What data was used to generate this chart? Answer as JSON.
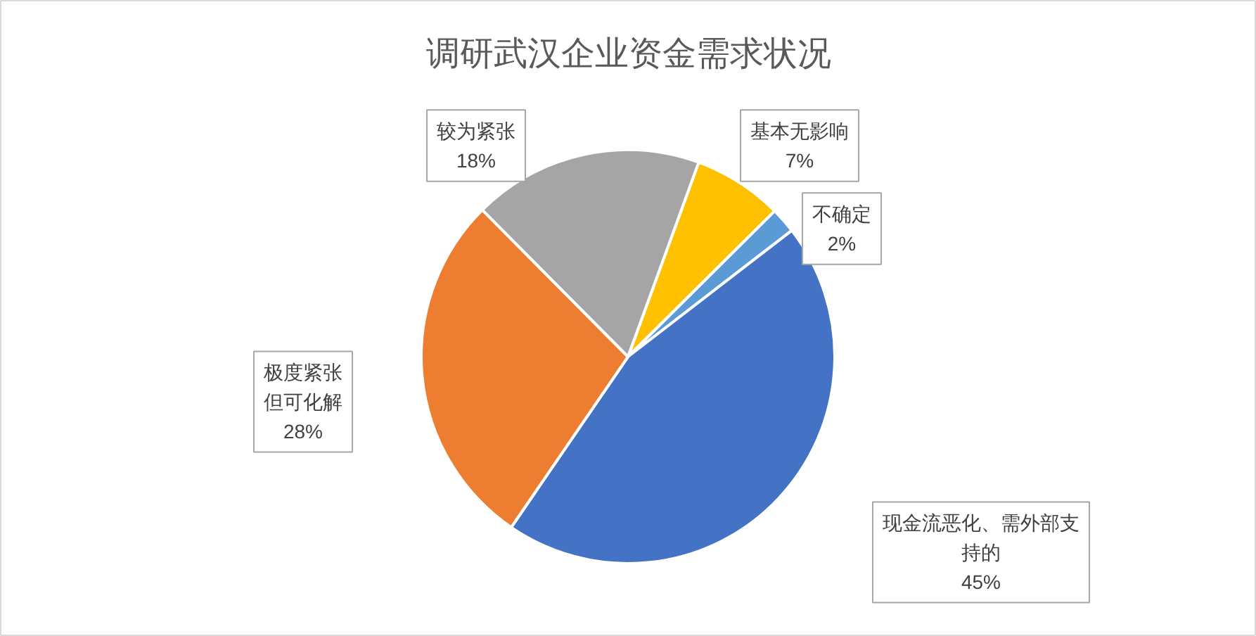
{
  "chart_data": {
    "type": "pie",
    "title": "调研武汉企业资金需求状况",
    "categories": [
      "基本无影响",
      "不确定",
      "现金流恶化、需外部支持的",
      "极度紧张但可化解",
      "较为紧张"
    ],
    "values": [
      7,
      2,
      45,
      28,
      18
    ],
    "colors": [
      "#ffc000",
      "#5b9bd5",
      "#4472c4",
      "#ed7d31",
      "#a5a5a5"
    ],
    "value_labels": [
      "7%",
      "2%",
      "45%",
      "28%",
      "18%"
    ]
  }
}
